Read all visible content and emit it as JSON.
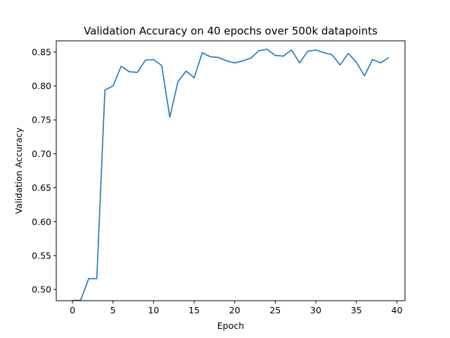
{
  "chart_data": {
    "type": "line",
    "title": "Validation Accuracy on 40 epochs over 500k datapoints",
    "xlabel": "Epoch",
    "ylabel": "Validation Accuracy",
    "xlim": [
      -2,
      41
    ],
    "ylim": [
      0.4835,
      0.8665
    ],
    "xticks": [
      0,
      5,
      10,
      15,
      20,
      25,
      30,
      35,
      40
    ],
    "xtick_labels": [
      "0",
      "5",
      "10",
      "15",
      "20",
      "25",
      "30",
      "35",
      "40"
    ],
    "yticks": [
      0.5,
      0.55,
      0.6,
      0.65,
      0.7,
      0.75,
      0.8,
      0.85
    ],
    "ytick_labels": [
      "0.50",
      "0.55",
      "0.60",
      "0.65",
      "0.70",
      "0.75",
      "0.80",
      "0.85"
    ],
    "grid": false,
    "series": [
      {
        "color": "#1f77b4",
        "x": [
          0,
          1,
          2,
          3,
          4,
          5,
          6,
          7,
          8,
          9,
          10,
          11,
          12,
          13,
          14,
          15,
          16,
          17,
          18,
          19,
          20,
          21,
          22,
          23,
          24,
          25,
          26,
          27,
          28,
          29,
          30,
          31,
          32,
          33,
          34,
          35,
          36,
          37,
          38,
          39
        ],
        "values": [
          0.484,
          0.484,
          0.516,
          0.516,
          0.794,
          0.8,
          0.829,
          0.821,
          0.82,
          0.838,
          0.839,
          0.83,
          0.754,
          0.806,
          0.822,
          0.812,
          0.849,
          0.843,
          0.842,
          0.837,
          0.834,
          0.837,
          0.841,
          0.852,
          0.854,
          0.845,
          0.844,
          0.853,
          0.834,
          0.851,
          0.853,
          0.849,
          0.846,
          0.831,
          0.848,
          0.835,
          0.815,
          0.839,
          0.834,
          0.842
        ]
      }
    ]
  }
}
